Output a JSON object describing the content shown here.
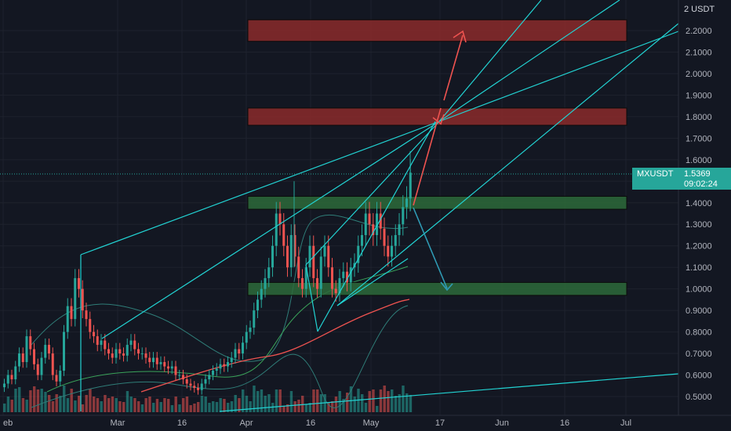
{
  "currency": "2 USDT",
  "y_ticks": [
    "2.2000",
    "2.1000",
    "2.0000",
    "1.9000",
    "1.8000",
    "1.7000",
    "1.6000",
    "1.5000",
    "1.4000",
    "1.3000",
    "1.2000",
    "1.1000",
    "1.0000",
    "0.9000",
    "0.8000",
    "0.7000",
    "0.6000",
    "0.5000"
  ],
  "x_ticks": [
    "eb",
    "Mar",
    "16",
    "Apr",
    "16",
    "May",
    "17",
    "Jun",
    "16",
    "Jul"
  ],
  "last_price": {
    "symbol": "MXUSDT",
    "price": "1.5369",
    "countdown": "09:02:24"
  },
  "colors": {
    "background": "#131722",
    "up": "#26a69a",
    "down": "#ef5350",
    "trendline": "#22d3d3",
    "resistance_zone": "#8b2a2a",
    "support_zone": "#2d6a3a"
  },
  "chart_data": {
    "type": "candlestick",
    "symbol": "MXUSDT",
    "ylim": [
      0.45,
      2.28
    ],
    "y_scale": "linear",
    "resistance_zones": [
      [
        2.15,
        2.25
      ],
      [
        1.76,
        1.84
      ]
    ],
    "support_zones": [
      [
        1.37,
        1.43
      ],
      [
        0.97,
        1.03
      ]
    ],
    "last_price": 1.5369
  }
}
